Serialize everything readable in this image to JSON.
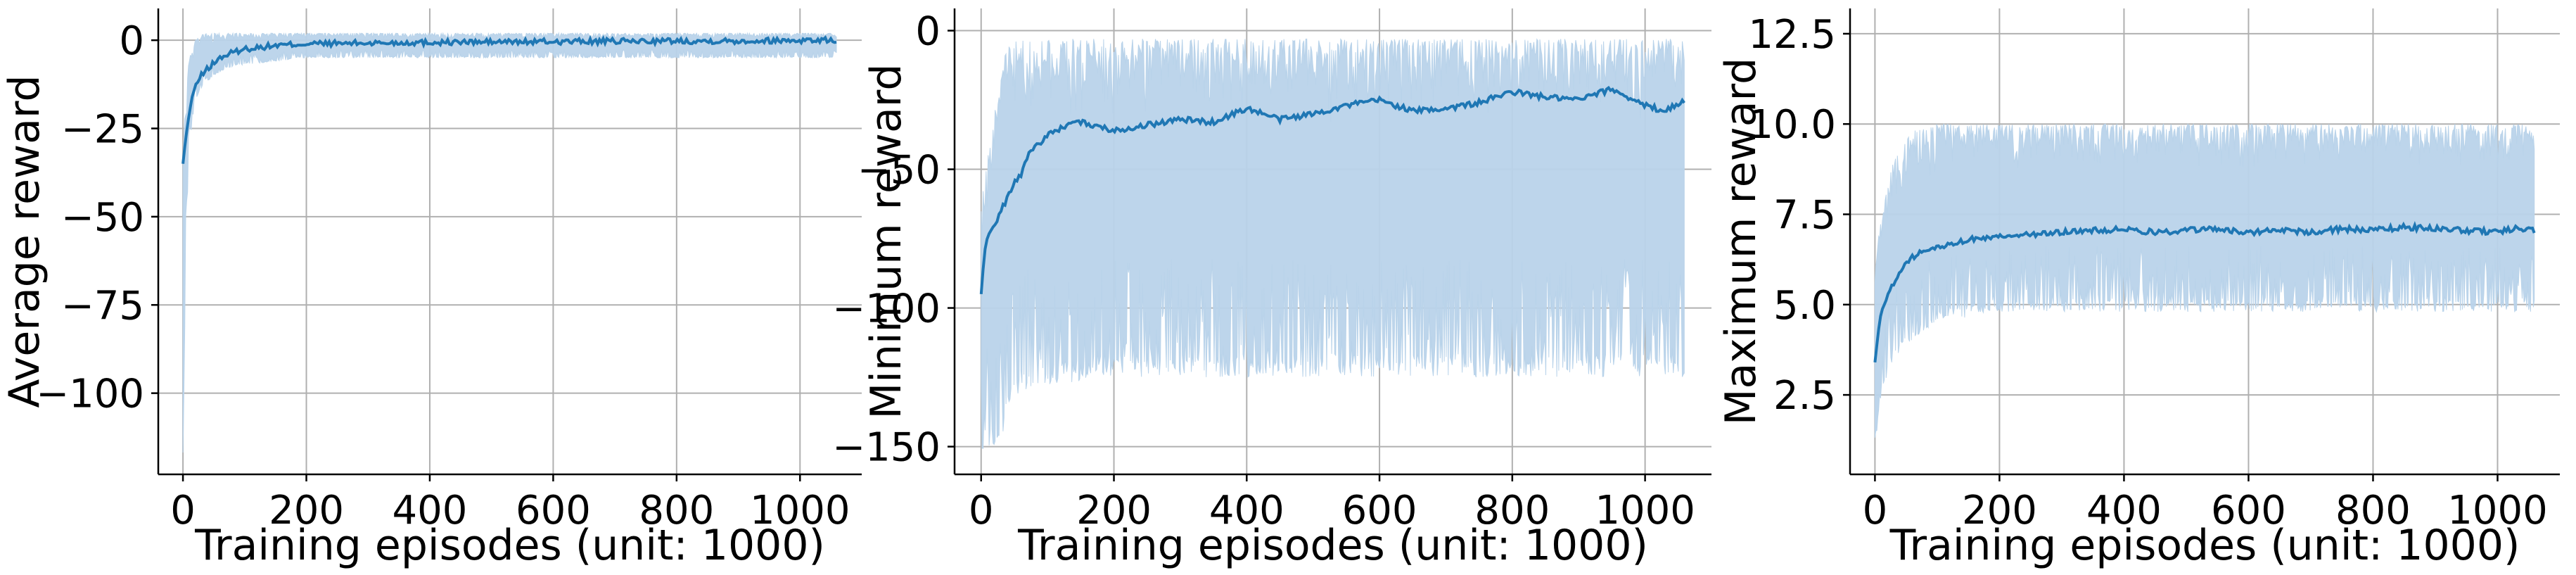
{
  "chart_data": [
    {
      "type": "line",
      "xlabel": "Training episodes (unit: 1000)",
      "ylabel": "Average reward",
      "xlim": [
        -40,
        1100
      ],
      "ylim": [
        -123,
        9
      ],
      "xticks": [
        0,
        200,
        400,
        600,
        800,
        1000
      ],
      "yticks": [
        0,
        -25,
        -50,
        -75,
        -100
      ],
      "ytick_labels": [
        "0",
        "−25",
        "−50",
        "−75",
        "−100"
      ],
      "grid": true,
      "colors": {
        "line": "#1f77b4",
        "band": "#b9d3ea"
      },
      "series": [
        {
          "x": [
            0,
            5,
            10,
            15,
            20,
            30,
            40,
            50,
            60,
            80,
            100,
            150,
            200,
            300,
            400,
            500,
            600,
            700,
            800,
            900,
            1000,
            1060
          ],
          "y": [
            -35,
            -27,
            -21,
            -16,
            -13,
            -10,
            -8,
            -6.5,
            -5,
            -3.5,
            -2.5,
            -1.5,
            -1,
            -0.8,
            -0.6,
            -0.5,
            -0.4,
            -0.3,
            -0.2,
            -0.2,
            0,
            0
          ]
        }
      ],
      "band": {
        "x": [
          0,
          5,
          10,
          20,
          30,
          50,
          70,
          100,
          150,
          200,
          400,
          600,
          800,
          1000,
          1060
        ],
        "upper": [
          -30,
          -15,
          -5,
          0,
          2,
          2,
          2,
          2,
          2,
          2,
          2,
          2,
          2,
          2,
          2
        ],
        "lower": [
          -118,
          -60,
          -30,
          -18,
          -14,
          -10,
          -8,
          -7,
          -6,
          -5,
          -5,
          -5,
          -5,
          -5,
          -5
        ]
      }
    },
    {
      "type": "line",
      "xlabel": "Training episodes (unit: 1000)",
      "ylabel": "Minimum reward",
      "xlim": [
        -40,
        1100
      ],
      "ylim": [
        -160,
        8
      ],
      "xticks": [
        0,
        200,
        400,
        600,
        800,
        1000
      ],
      "yticks": [
        0,
        -50,
        -100,
        -150
      ],
      "ytick_labels": [
        "0",
        "−50",
        "−100",
        "−150"
      ],
      "grid": true,
      "colors": {
        "line": "#1f77b4",
        "band": "#b9d3ea"
      },
      "series": [
        {
          "x": [
            0,
            5,
            10,
            20,
            30,
            40,
            50,
            60,
            70,
            80,
            100,
            120,
            150,
            200,
            250,
            300,
            350,
            400,
            450,
            500,
            550,
            600,
            650,
            700,
            750,
            800,
            850,
            900,
            950,
            1000,
            1030,
            1060
          ],
          "y": [
            -95,
            -80,
            -74,
            -70,
            -65,
            -60,
            -55,
            -52,
            -45,
            -42,
            -38,
            -35,
            -33,
            -36,
            -34,
            -32,
            -33,
            -28,
            -32,
            -30,
            -27,
            -25,
            -29,
            -28,
            -26,
            -22,
            -24,
            -25,
            -21,
            -27,
            -29,
            -25
          ]
        }
      ],
      "band": {
        "x": [
          0,
          20,
          30,
          40,
          60,
          100,
          200,
          400,
          600,
          800,
          1000,
          1060
        ],
        "upper": [
          -60,
          -30,
          -15,
          -5,
          -3,
          -3,
          -3,
          -3,
          -3,
          -3,
          -3,
          -3
        ],
        "lower": [
          -152,
          -150,
          -148,
          -140,
          -130,
          -128,
          -125,
          -125,
          -125,
          -125,
          -125,
          -125
        ]
      }
    },
    {
      "type": "line",
      "xlabel": "Training episodes (unit: 1000)",
      "ylabel": "Maximum reward",
      "xlim": [
        -40,
        1100
      ],
      "ylim": [
        0.3,
        13.2
      ],
      "xticks": [
        0,
        200,
        400,
        600,
        800,
        1000
      ],
      "yticks": [
        2.5,
        5.0,
        7.5,
        10.0,
        12.5
      ],
      "ytick_labels": [
        "2.5",
        "5.0",
        "7.5",
        "10.0",
        "12.5"
      ],
      "grid": true,
      "colors": {
        "line": "#1f77b4",
        "band": "#b9d3ea"
      },
      "series": [
        {
          "x": [
            0,
            5,
            10,
            20,
            30,
            50,
            70,
            100,
            150,
            200,
            250,
            300,
            350,
            400,
            450,
            500,
            550,
            600,
            650,
            700,
            750,
            800,
            850,
            900,
            950,
            1000,
            1030,
            1060
          ],
          "y": [
            3.4,
            4.2,
            4.8,
            5.2,
            5.6,
            6.2,
            6.4,
            6.6,
            6.8,
            6.9,
            6.95,
            7.0,
            7.05,
            7.1,
            7.0,
            7.05,
            7.1,
            7.0,
            7.05,
            7.0,
            7.1,
            7.05,
            7.15,
            7.1,
            7.05,
            7.0,
            7.1,
            7.05
          ]
        }
      ],
      "band": {
        "x": [
          0,
          10,
          30,
          60,
          100,
          200,
          400,
          600,
          800,
          1000,
          1060
        ],
        "upper": [
          6.0,
          7.5,
          9.0,
          9.8,
          10.0,
          10.0,
          10.0,
          10.0,
          10.0,
          10.0,
          10.0
        ],
        "lower": [
          1.0,
          2.5,
          3.5,
          4.0,
          4.5,
          4.8,
          4.8,
          4.8,
          4.8,
          4.8,
          4.8
        ]
      }
    }
  ]
}
